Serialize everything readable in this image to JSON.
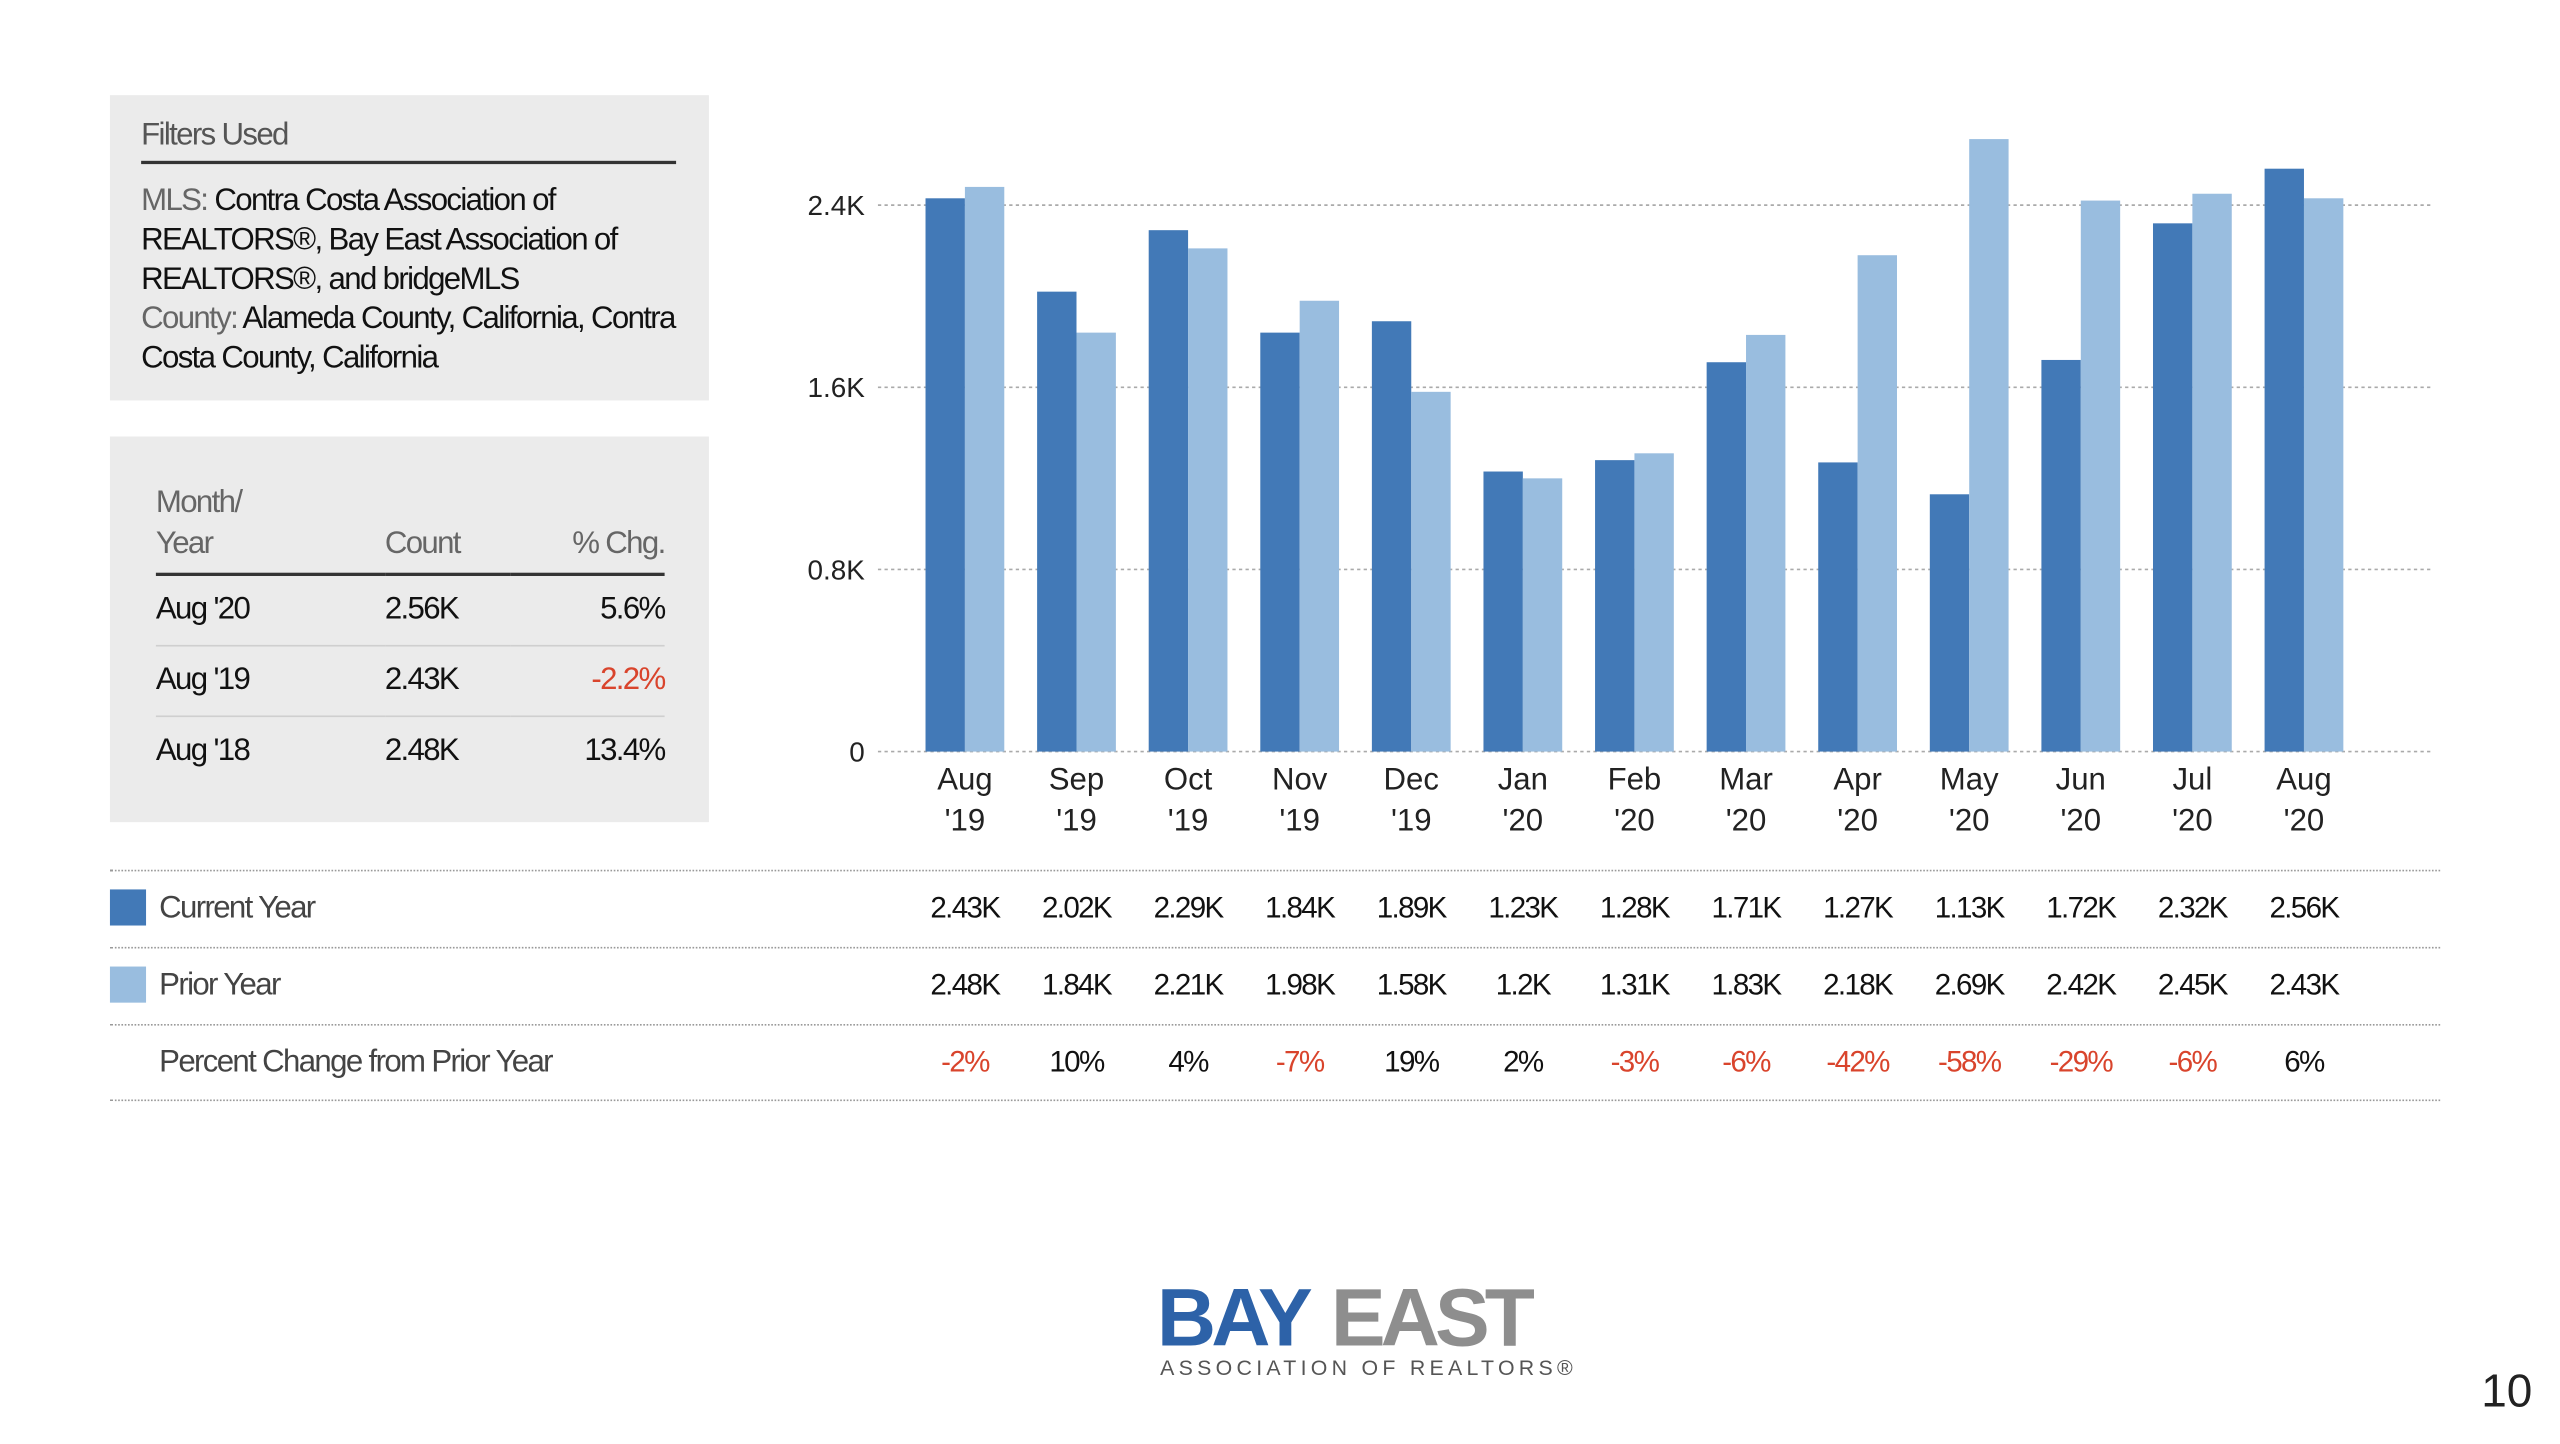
{
  "filters": {
    "title": "Filters Used",
    "mls_label": "MLS:",
    "mls_value": "Contra Costa Association of REALTORS®, Bay East Association of REALTORS®, and bridgeMLS",
    "county_label": "County:",
    "county_value": "Alameda County, California, Contra Costa County, California"
  },
  "summary": {
    "header_month_line1": "Month/",
    "header_month_line2": "Year",
    "header_count": "Count",
    "header_pct": "% Chg.",
    "rows": [
      {
        "month": "Aug '20",
        "count": "2.56K",
        "pct": "5.6%"
      },
      {
        "month": "Aug '19",
        "count": "2.43K",
        "pct": "-2.2%"
      },
      {
        "month": "Aug '18",
        "count": "2.48K",
        "pct": "13.4%"
      }
    ]
  },
  "chart_data": {
    "type": "bar",
    "categories": [
      "Aug '19",
      "Sep '19",
      "Oct '19",
      "Nov '19",
      "Dec '19",
      "Jan '20",
      "Feb '20",
      "Mar '20",
      "Apr '20",
      "May '20",
      "Jun '20",
      "Jul '20",
      "Aug '20"
    ],
    "category_lines": [
      [
        "Aug",
        "'19"
      ],
      [
        "Sep",
        "'19"
      ],
      [
        "Oct",
        "'19"
      ],
      [
        "Nov",
        "'19"
      ],
      [
        "Dec",
        "'19"
      ],
      [
        "Jan",
        "'20"
      ],
      [
        "Feb",
        "'20"
      ],
      [
        "Mar",
        "'20"
      ],
      [
        "Apr",
        "'20"
      ],
      [
        "May",
        "'20"
      ],
      [
        "Jun",
        "'20"
      ],
      [
        "Jul",
        "'20"
      ],
      [
        "Aug",
        "'20"
      ]
    ],
    "series": [
      {
        "name": "Current Year",
        "color": "#4279b7",
        "values": [
          2430,
          2020,
          2290,
          1840,
          1890,
          1230,
          1280,
          1710,
          1270,
          1130,
          1720,
          2320,
          2560
        ]
      },
      {
        "name": "Prior Year",
        "color": "#99bddf",
        "values": [
          2480,
          1840,
          2210,
          1980,
          1580,
          1200,
          1310,
          1830,
          2180,
          2690,
          2420,
          2450,
          2430
        ]
      }
    ],
    "ylim": [
      0,
      2400
    ],
    "y_ticks": [
      0,
      800,
      1600,
      2400
    ],
    "y_tick_labels": [
      "0",
      "0.8K",
      "1.6K",
      "2.4K"
    ],
    "grid": true,
    "xlabel": "",
    "ylabel": ""
  },
  "data_table": {
    "current_label": "Current Year",
    "prior_label": "Prior Year",
    "pct_label": "Percent Change from Prior Year",
    "current": [
      "2.43K",
      "2.02K",
      "2.29K",
      "1.84K",
      "1.89K",
      "1.23K",
      "1.28K",
      "1.71K",
      "1.27K",
      "1.13K",
      "1.72K",
      "2.32K",
      "2.56K"
    ],
    "prior": [
      "2.48K",
      "1.84K",
      "2.21K",
      "1.98K",
      "1.58K",
      "1.2K",
      "1.31K",
      "1.83K",
      "2.18K",
      "2.69K",
      "2.42K",
      "2.45K",
      "2.43K"
    ],
    "pct": [
      "-2%",
      "10%",
      "4%",
      "-7%",
      "19%",
      "2%",
      "-3%",
      "-6%",
      "-42%",
      "-58%",
      "-29%",
      "-6%",
      "6%"
    ]
  },
  "colors": {
    "current": "#4279b7",
    "prior": "#99bddf",
    "negative": "#d9442c",
    "logo_blue": "#2d62a8",
    "logo_gray": "#8e8e8e"
  },
  "logo": {
    "bay": "BAY",
    "east": "EAST",
    "tagline": "ASSOCIATION OF REALTORS®"
  },
  "page_number": "10"
}
